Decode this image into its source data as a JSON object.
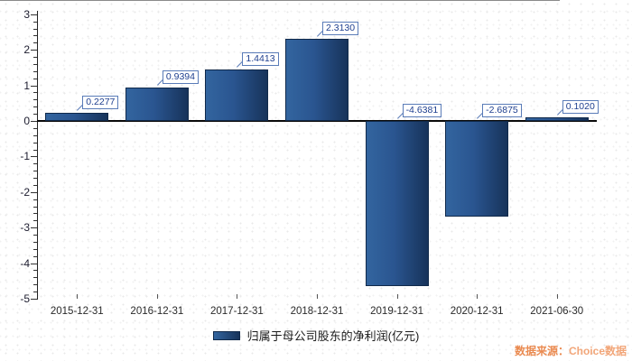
{
  "chart_data": {
    "type": "bar",
    "categories": [
      "2015-12-31",
      "2016-12-31",
      "2017-12-31",
      "2018-12-31",
      "2019-12-31",
      "2020-12-31",
      "2021-06-30"
    ],
    "values": [
      0.2277,
      0.9394,
      1.4413,
      2.313,
      -4.6381,
      -2.6875,
      0.102
    ],
    "value_labels": [
      "0.2277",
      "0.9394",
      "1.4413",
      "2.3130",
      "-4.6381",
      "-2.6875",
      "0.1020"
    ],
    "series_name": "归属于母公司股东的净利润(亿元)",
    "title": "",
    "xlabel": "",
    "ylabel": "",
    "ylim": [
      -5,
      3
    ],
    "y_major_step": 1,
    "y_minor_step": 0.2,
    "grid": false,
    "legend_position": "bottom",
    "bar_color_start": "#33659f",
    "bar_color_end": "#17335a",
    "bar_border_color": "#10294a",
    "value_label_text_color": "#1e3f8f",
    "value_label_border_color": "#5a7cb8"
  },
  "legend": {
    "label": "归属于母公司股东的净利润(亿元)"
  },
  "source": {
    "prefix": "数据来源：",
    "name": "Choice数据",
    "prefix_color": "#ea8a50",
    "name_color": "#f2a679"
  }
}
